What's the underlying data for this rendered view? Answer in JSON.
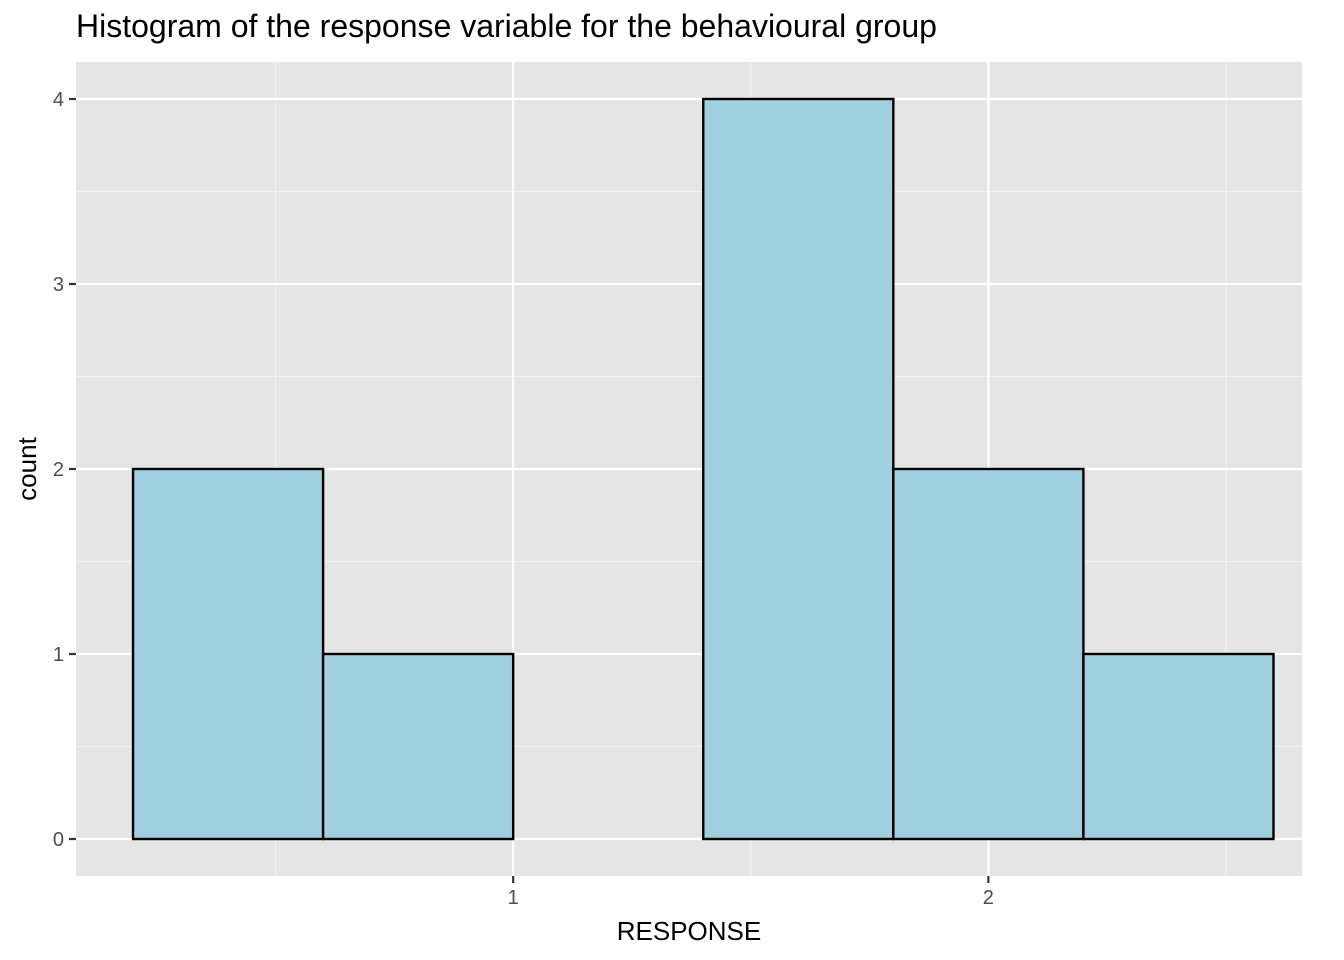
{
  "chart_data": {
    "type": "bar",
    "title": "Histogram of the response variable for the behavioural group",
    "xlabel": "RESPONSE",
    "ylabel": "count",
    "xlim": [
      0.08,
      2.66
    ],
    "ylim": [
      -0.2,
      4.2
    ],
    "x_ticks": [
      1,
      2
    ],
    "x_tick_labels": [
      "1",
      "2"
    ],
    "y_ticks": [
      0,
      1,
      2,
      3,
      4
    ],
    "y_tick_labels": [
      "0",
      "1",
      "2",
      "3",
      "4"
    ],
    "bins": [
      {
        "x_start": 0.2,
        "x_end": 0.6,
        "count": 2
      },
      {
        "x_start": 0.6,
        "x_end": 1.0,
        "count": 1
      },
      {
        "x_start": 1.0,
        "x_end": 1.4,
        "count": 0
      },
      {
        "x_start": 1.4,
        "x_end": 1.8,
        "count": 4
      },
      {
        "x_start": 1.8,
        "x_end": 2.2,
        "count": 2
      },
      {
        "x_start": 2.2,
        "x_end": 2.6,
        "count": 1
      }
    ],
    "grid": true,
    "colors": {
      "bar_fill": "#a0cfe0",
      "bar_stroke": "#000000",
      "panel_background": "#e5e5e5",
      "grid_major": "#ffffff",
      "grid_minor": "#f2f2f2",
      "tick_text": "#4d4d4d"
    }
  }
}
